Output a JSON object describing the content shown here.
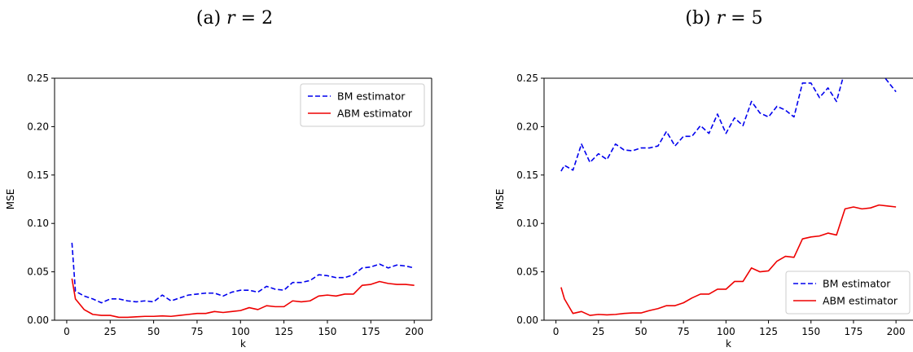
{
  "captions": [
    {
      "prefix": "(a) ",
      "var": "r",
      "rest": " = 2"
    },
    {
      "prefix": "(b) ",
      "var": "r",
      "rest": " = 5"
    }
  ],
  "colors": {
    "bm": "#0000ee",
    "abm": "#ee0000"
  },
  "chart_data": [
    {
      "type": "line",
      "title": "",
      "xlabel": "k",
      "ylabel": "MSE",
      "xlim": [
        -7,
        210
      ],
      "ylim": [
        0,
        0.25
      ],
      "xticks": [
        0,
        25,
        50,
        75,
        100,
        125,
        150,
        175,
        200
      ],
      "yticks": [
        "0.00",
        "0.05",
        "0.10",
        "0.15",
        "0.20",
        "0.25"
      ],
      "legend_position": "top-right",
      "x": [
        3,
        5,
        10,
        15,
        20,
        25,
        30,
        35,
        40,
        45,
        50,
        55,
        60,
        65,
        70,
        75,
        80,
        85,
        90,
        95,
        100,
        105,
        110,
        115,
        120,
        125,
        130,
        135,
        140,
        145,
        150,
        155,
        160,
        165,
        170,
        175,
        180,
        185,
        190,
        195,
        200
      ],
      "series": [
        {
          "name": "BM estimator",
          "style": "dashed",
          "values": [
            0.08,
            0.03,
            0.025,
            0.022,
            0.018,
            0.022,
            0.022,
            0.02,
            0.019,
            0.02,
            0.019,
            0.026,
            0.02,
            0.023,
            0.026,
            0.027,
            0.028,
            0.028,
            0.025,
            0.029,
            0.031,
            0.031,
            0.029,
            0.035,
            0.032,
            0.031,
            0.039,
            0.039,
            0.041,
            0.047,
            0.046,
            0.044,
            0.044,
            0.047,
            0.054,
            0.055,
            0.058,
            0.054,
            0.057,
            0.056,
            0.054
          ]
        },
        {
          "name": "ABM estimator",
          "style": "solid",
          "values": [
            0.043,
            0.022,
            0.011,
            0.006,
            0.005,
            0.005,
            0.003,
            0.003,
            0.0035,
            0.004,
            0.004,
            0.0045,
            0.004,
            0.005,
            0.006,
            0.007,
            0.007,
            0.009,
            0.008,
            0.009,
            0.01,
            0.013,
            0.011,
            0.015,
            0.014,
            0.014,
            0.02,
            0.019,
            0.02,
            0.025,
            0.026,
            0.025,
            0.027,
            0.027,
            0.036,
            0.037,
            0.04,
            0.038,
            0.037,
            0.037,
            0.036
          ]
        }
      ]
    },
    {
      "type": "line",
      "title": "",
      "xlabel": "k",
      "ylabel": "MSE",
      "xlim": [
        -7,
        210
      ],
      "ylim": [
        0,
        0.25
      ],
      "xticks": [
        0,
        25,
        50,
        75,
        100,
        125,
        150,
        175,
        200
      ],
      "yticks": [
        "0.00",
        "0.05",
        "0.10",
        "0.15",
        "0.20",
        "0.25"
      ],
      "legend_position": "bottom-right",
      "x": [
        3,
        5,
        10,
        15,
        20,
        25,
        30,
        35,
        40,
        45,
        50,
        55,
        60,
        65,
        70,
        75,
        80,
        85,
        90,
        95,
        100,
        105,
        110,
        115,
        120,
        125,
        130,
        135,
        140,
        145,
        150,
        155,
        160,
        165,
        170,
        175,
        180,
        185,
        190,
        195,
        200
      ],
      "series": [
        {
          "name": "BM estimator",
          "style": "dashed",
          "values": [
            0.154,
            0.16,
            0.155,
            0.182,
            0.163,
            0.172,
            0.166,
            0.182,
            0.176,
            0.175,
            0.178,
            0.178,
            0.18,
            0.195,
            0.18,
            0.19,
            0.19,
            0.201,
            0.193,
            0.213,
            0.193,
            0.209,
            0.201,
            0.226,
            0.214,
            0.21,
            0.221,
            0.217,
            0.21,
            0.245,
            0.245,
            0.23,
            0.24,
            0.226,
            0.258,
            0.258,
            0.258,
            0.258,
            0.258,
            0.247,
            0.236
          ]
        },
        {
          "name": "ABM estimator",
          "style": "solid",
          "values": [
            0.034,
            0.022,
            0.007,
            0.009,
            0.005,
            0.006,
            0.0055,
            0.006,
            0.007,
            0.0075,
            0.0075,
            0.01,
            0.012,
            0.015,
            0.015,
            0.018,
            0.023,
            0.027,
            0.027,
            0.032,
            0.032,
            0.04,
            0.04,
            0.054,
            0.05,
            0.051,
            0.061,
            0.066,
            0.065,
            0.084,
            0.086,
            0.087,
            0.09,
            0.088,
            0.115,
            0.117,
            0.115,
            0.116,
            0.119,
            0.118,
            0.117
          ]
        }
      ]
    }
  ]
}
